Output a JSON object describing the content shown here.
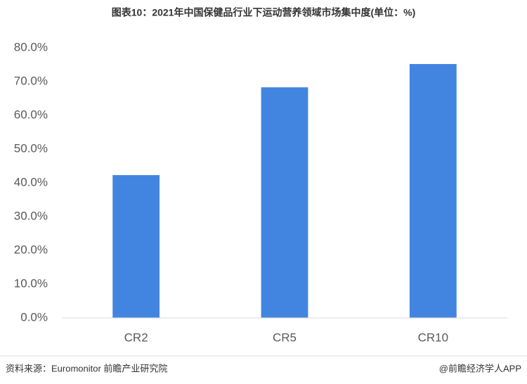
{
  "chart_data": {
    "type": "bar",
    "title": "图表10：2021年中国保健品行业下运动营养领域市场集中度(单位：%)",
    "categories": [
      "CR2",
      "CR5",
      "CR10"
    ],
    "values": [
      42.3,
      68.3,
      75.2
    ],
    "color": "#4285e0",
    "ylim": [
      0,
      80
    ],
    "yticks": [
      {
        "value": 0,
        "label": "0.0%"
      },
      {
        "value": 10,
        "label": "10.0%"
      },
      {
        "value": 20,
        "label": "20.0%"
      },
      {
        "value": 30,
        "label": "30.0%"
      },
      {
        "value": 40,
        "label": "40.0%"
      },
      {
        "value": 50,
        "label": "50.0%"
      },
      {
        "value": 60,
        "label": "60.0%"
      },
      {
        "value": 70,
        "label": "70.0%"
      },
      {
        "value": 80,
        "label": "80.0%"
      }
    ],
    "grid": false,
    "source": "资料来源：Euromonitor 前瞻产业研究院",
    "credit": "@前瞻经济学人APP"
  }
}
